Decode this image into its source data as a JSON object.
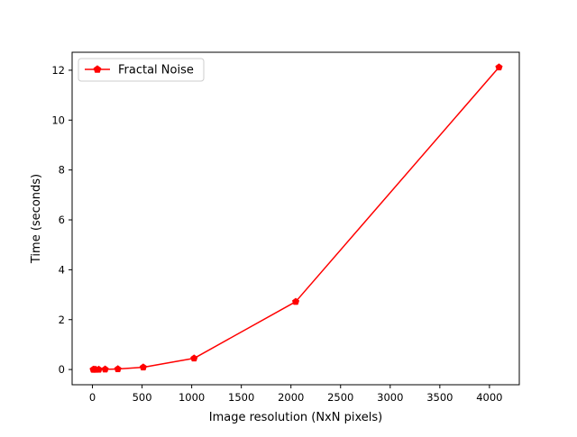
{
  "chart_data": {
    "type": "line",
    "title": "",
    "xlabel": "Image resolution (NxN pixels)",
    "ylabel": "Time (seconds)",
    "xlim": [
      -204.8,
      4300.8
    ],
    "ylim": [
      -0.61,
      12.72
    ],
    "x_ticks": [
      0,
      500,
      1000,
      1500,
      2000,
      2500,
      3000,
      3500,
      4000
    ],
    "x_tick_labels": [
      "0",
      "500",
      "1000",
      "1500",
      "2000",
      "2500",
      "3000",
      "3500",
      "4000"
    ],
    "y_ticks": [
      0,
      2,
      4,
      6,
      8,
      10,
      12
    ],
    "y_tick_labels": [
      "0",
      "2",
      "4",
      "6",
      "8",
      "10",
      "12"
    ],
    "grid": false,
    "legend_position": "upper-left",
    "series": [
      {
        "name": "Fractal Noise",
        "color": "#ff0000",
        "marker": "pentagon",
        "x": [
          8,
          16,
          32,
          64,
          128,
          256,
          512,
          1024,
          2048,
          4096
        ],
        "y": [
          0.0,
          0.0,
          0.0,
          0.0,
          0.01,
          0.02,
          0.09,
          0.45,
          2.72,
          12.12
        ]
      }
    ]
  }
}
